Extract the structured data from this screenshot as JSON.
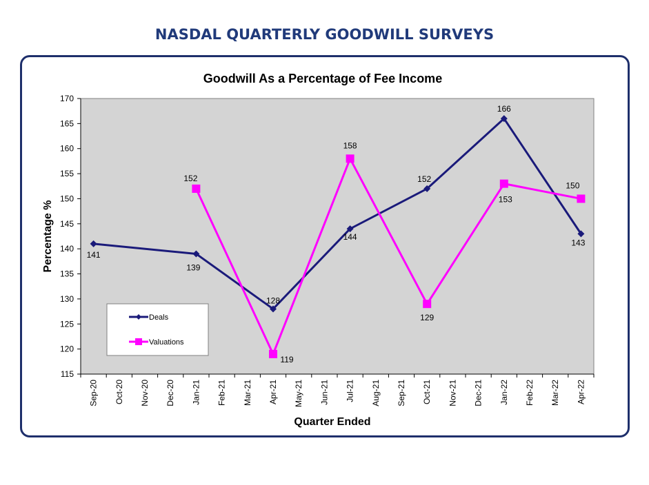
{
  "header": {
    "title": "NASDAL QUARTERLY GOODWILL SURVEYS"
  },
  "chart_data": {
    "type": "line",
    "title": "Goodwill As a Percentage of Fee Income",
    "xlabel": "Quarter Ended",
    "ylabel": "Percentage %",
    "ylim": [
      115,
      170
    ],
    "yticks": [
      115,
      120,
      125,
      130,
      135,
      140,
      145,
      150,
      155,
      160,
      165,
      170
    ],
    "categories": [
      "Sep-20",
      "Oct-20",
      "Nov-20",
      "Dec-20",
      "Jan-21",
      "Feb-21",
      "Mar-21",
      "Apr-21",
      "May-21",
      "Jun-21",
      "Jul-21",
      "Aug-21",
      "Sep-21",
      "Oct-21",
      "Nov-21",
      "Dec-21",
      "Jan-22",
      "Feb-22",
      "Mar-22",
      "Apr-22"
    ],
    "series": [
      {
        "name": "Deals",
        "color": "#1a1a7a",
        "marker": "diamond",
        "points": [
          {
            "x": "Sep-20",
            "y": 141
          },
          {
            "x": "Jan-21",
            "y": 139
          },
          {
            "x": "Apr-21",
            "y": 128
          },
          {
            "x": "Jul-21",
            "y": 144
          },
          {
            "x": "Oct-21",
            "y": 152
          },
          {
            "x": "Jan-22",
            "y": 166
          },
          {
            "x": "Apr-22",
            "y": 143
          }
        ]
      },
      {
        "name": "Valuations",
        "color": "#ff00ff",
        "marker": "square",
        "points": [
          {
            "x": "Jan-21",
            "y": 152
          },
          {
            "x": "Apr-21",
            "y": 119
          },
          {
            "x": "Jul-21",
            "y": 158
          },
          {
            "x": "Oct-21",
            "y": 129
          },
          {
            "x": "Jan-22",
            "y": 153
          },
          {
            "x": "Apr-22",
            "y": 150
          }
        ]
      }
    ],
    "grid": false,
    "legend": "bottom-left",
    "plot_background": "#d4d4d4"
  }
}
